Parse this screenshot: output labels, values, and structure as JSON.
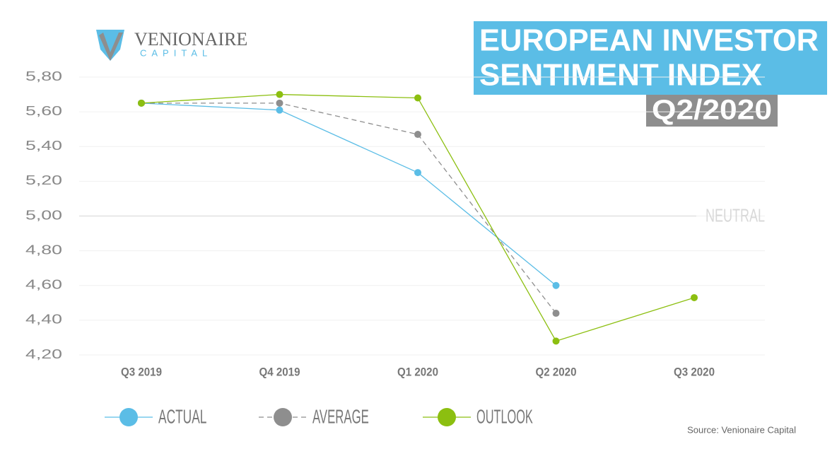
{
  "chart_data": {
    "type": "line",
    "title": [
      "EUROPEAN INVESTOR",
      "SENTIMENT INDEX"
    ],
    "subtitle": "Q2/2020",
    "logo": {
      "name": "VENIONAIRE",
      "tagline": "CAPITAL"
    },
    "source": "Source: Venionaire Capital",
    "annotation": {
      "text": "NEUTRAL",
      "value": 5
    },
    "categories": [
      "Q3 2019",
      "Q4 2019",
      "Q1 2020",
      "Q2 2020",
      "Q3 2020"
    ],
    "series": [
      {
        "name": "ACTUAL",
        "color": "#5bbde6",
        "dashed": false,
        "values": [
          5.65,
          5.61,
          5.25,
          4.6,
          null
        ]
      },
      {
        "name": "AVERAGE",
        "color": "#8e8e8e",
        "dashed": true,
        "values": [
          5.65,
          5.65,
          5.47,
          4.44,
          null
        ]
      },
      {
        "name": "OUTLOOK",
        "color": "#8cbf10",
        "dashed": false,
        "values": [
          5.65,
          5.7,
          5.68,
          4.28,
          4.53
        ]
      }
    ],
    "ylim": [
      4.2,
      5.8
    ],
    "yticks": [
      {
        "value": 4.2,
        "label": "4,20"
      },
      {
        "value": 4.4,
        "label": "4,40"
      },
      {
        "value": 4.6,
        "label": "4,60"
      },
      {
        "value": 4.8,
        "label": "4,80"
      },
      {
        "value": 5,
        "label": "5,00"
      },
      {
        "value": 5.2,
        "label": "5,20"
      },
      {
        "value": 5.4,
        "label": "5,40"
      },
      {
        "value": 5.6,
        "label": "5,60"
      },
      {
        "value": 5.8,
        "label": "5,80"
      }
    ],
    "grid": true
  }
}
